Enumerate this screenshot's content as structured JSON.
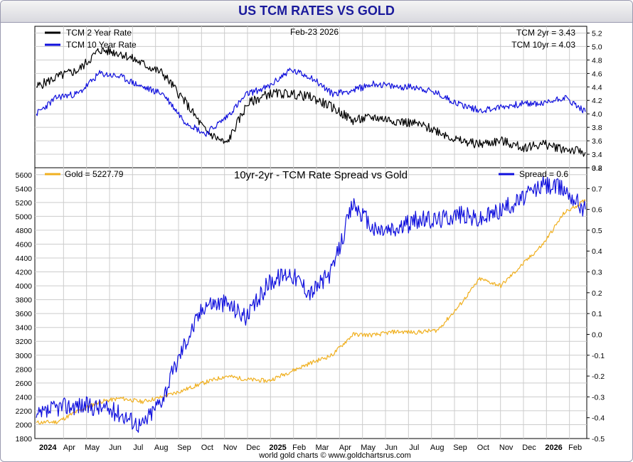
{
  "title": "US TCM RATES VS GOLD",
  "date": "Feb-23  2026",
  "footer": "world gold charts © www.goldchartsrus.com",
  "colors": {
    "tcm2": "#000000",
    "tcm10": "#1010dd",
    "gold": "#f0b020",
    "spread": "#1010dd",
    "title": "#1a1a9c"
  },
  "chart_data": [
    {
      "type": "line",
      "title": "",
      "legend": [
        "TCM 2 Year Rate",
        "TCM 10 Year Rate"
      ],
      "legend_placement": "top-left",
      "readout": [
        "TCM 2yr = 3.43",
        "TCM 10yr = 4.03"
      ],
      "ylim": [
        3.2,
        5.3
      ],
      "ytick_labels": [
        "3.2",
        "3.4",
        "3.6",
        "3.8",
        "4.0",
        "4.2",
        "4.4",
        "4.6",
        "4.8",
        "5.0",
        "5.2"
      ],
      "x": [
        "2024-01",
        "2024-02",
        "2024-03",
        "2024-04",
        "2024-05",
        "2024-06",
        "2024-07",
        "2024-08",
        "2024-09",
        "2024-10",
        "2024-11",
        "2024-12",
        "2025-01",
        "2025-02",
        "2025-03",
        "2025-04",
        "2025-05",
        "2025-06",
        "2025-07",
        "2025-08",
        "2025-09",
        "2025-10",
        "2025-11",
        "2025-12",
        "2026-01",
        "2026-02",
        "2026-02b"
      ],
      "series": [
        {
          "name": "TCM 2 Year Rate",
          "values": [
            4.4,
            4.55,
            4.65,
            4.95,
            4.9,
            4.75,
            4.6,
            4.2,
            3.75,
            3.55,
            4.15,
            4.3,
            4.3,
            4.25,
            4.1,
            3.9,
            3.95,
            3.9,
            3.85,
            3.75,
            3.6,
            3.55,
            3.6,
            3.5,
            3.55,
            3.48,
            3.43
          ]
        },
        {
          "name": "TCM 10 Year Rate",
          "values": [
            4.0,
            4.25,
            4.3,
            4.6,
            4.55,
            4.4,
            4.3,
            3.9,
            3.7,
            3.95,
            4.3,
            4.4,
            4.65,
            4.55,
            4.3,
            4.35,
            4.45,
            4.4,
            4.4,
            4.3,
            4.15,
            4.05,
            4.1,
            4.15,
            4.15,
            4.25,
            4.03
          ]
        }
      ]
    },
    {
      "type": "line",
      "title": "10yr-2yr - TCM Rate Spread vs Gold",
      "legend": [
        "Gold = 5227.79",
        "Spread = 0.6"
      ],
      "ylim_left": [
        1800,
        5700
      ],
      "ylim_right": [
        -0.5,
        0.8
      ],
      "ytick_labels_left": [
        "1800",
        "2000",
        "2200",
        "2400",
        "2600",
        "2800",
        "3000",
        "3200",
        "3400",
        "3600",
        "3800",
        "4000",
        "4200",
        "4400",
        "4600",
        "4800",
        "5000",
        "5200",
        "5400",
        "5600"
      ],
      "ytick_labels_right": [
        "-0.5",
        "-0.4",
        "-0.3",
        "-0.2",
        "-0.1",
        "0.0",
        "0.1",
        "0.2",
        "0.3",
        "0.4",
        "0.5",
        "0.6",
        "0.7",
        "0.8"
      ],
      "x": [
        "2024-01",
        "2024-02",
        "2024-03",
        "2024-04",
        "2024-05",
        "2024-06",
        "2024-07",
        "2024-08",
        "2024-09",
        "2024-10",
        "2024-11",
        "2024-12",
        "2025-01",
        "2025-02",
        "2025-03",
        "2025-04",
        "2025-05",
        "2025-06",
        "2025-07",
        "2025-08",
        "2025-09",
        "2025-10",
        "2025-11",
        "2025-12",
        "2026-01",
        "2026-02",
        "2026-02b"
      ],
      "xtick_labels": [
        "2024",
        "Apr",
        "May",
        "Jun",
        "Jul",
        "Aug",
        "Sep",
        "Oct",
        "Nov",
        "Dec",
        "2025",
        "Feb",
        "Mar",
        "Apr",
        "May",
        "Jun",
        "Jul",
        "Aug",
        "Sep",
        "Oct",
        "Nov",
        "Dec",
        "2026",
        "Feb"
      ],
      "series": [
        {
          "name": "Gold",
          "axis": "left",
          "values": [
            2030,
            2040,
            2200,
            2330,
            2380,
            2330,
            2400,
            2500,
            2610,
            2700,
            2650,
            2630,
            2760,
            2890,
            3000,
            3300,
            3290,
            3340,
            3330,
            3360,
            3700,
            4100,
            4000,
            4300,
            4600,
            5050,
            5228
          ]
        },
        {
          "name": "Spread",
          "axis": "right",
          "values": [
            -0.4,
            -0.35,
            -0.34,
            -0.35,
            -0.38,
            -0.44,
            -0.3,
            -0.05,
            0.15,
            0.15,
            0.08,
            0.25,
            0.3,
            0.2,
            0.3,
            0.63,
            0.5,
            0.5,
            0.55,
            0.55,
            0.58,
            0.55,
            0.6,
            0.65,
            0.72,
            0.7,
            0.6
          ]
        }
      ]
    }
  ]
}
